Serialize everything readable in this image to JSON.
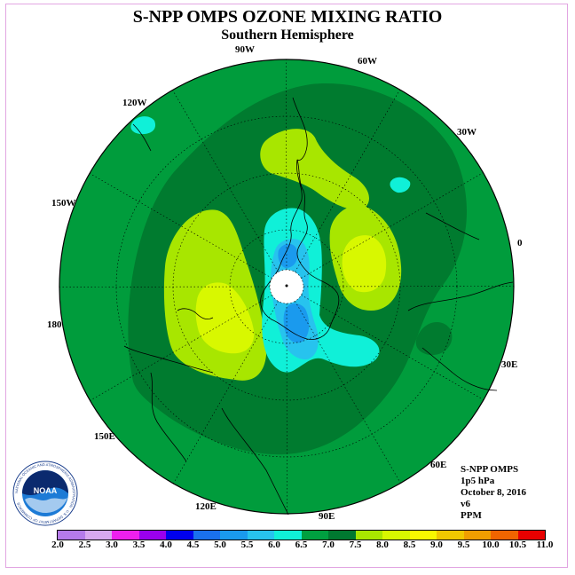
{
  "title": "S-NPP OMPS OZONE MIXING RATIO",
  "subtitle": "Southern Hemisphere",
  "longitude_labels": {
    "w90": "90W",
    "w60": "60W",
    "w30": "30W",
    "zero": "0",
    "w120": "120W",
    "w150": "150W",
    "d180": "180",
    "e30": "30E",
    "e60": "60E",
    "e90": "90E",
    "e120": "120E",
    "e150": "150E"
  },
  "info": {
    "instrument": "S-NPP OMPS",
    "level": "1p5 hPa",
    "date": "October 8, 2016",
    "version": "v6",
    "units": "PPM"
  },
  "logo": {
    "text": "NOAA",
    "ring_text": "NATIONAL OCEANIC AND ATMOSPHERIC ADMINISTRATION · U.S. DEPARTMENT OF COMMERCE"
  },
  "colorbar": {
    "labels": [
      "2.0",
      "2.5",
      "3.0",
      "3.5",
      "4.0",
      "4.5",
      "5.0",
      "5.5",
      "6.0",
      "6.5",
      "7.0",
      "7.5",
      "8.0",
      "8.5",
      "9.0",
      "9.5",
      "10.0",
      "10.5",
      "11.0"
    ],
    "colors": [
      "#b57bea",
      "#d8a8ef",
      "#ee20ee",
      "#9a00ee",
      "#0000ee",
      "#1a70ee",
      "#1a9aee",
      "#27c3ee",
      "#10f0d8",
      "#00a040",
      "#007830",
      "#a8e600",
      "#d8f800",
      "#f8f800",
      "#f0c800",
      "#f09e00",
      "#f06400",
      "#e80000",
      "#8e5a3c"
    ]
  },
  "colors": {
    "outer_green": "#009c3c",
    "dark_green": "#007b2f",
    "yellow_green": "#a8e600",
    "lime": "#d8f800",
    "cyan": "#10f0d8",
    "light_blue": "#27c3ee",
    "blue": "#1a9aee"
  }
}
